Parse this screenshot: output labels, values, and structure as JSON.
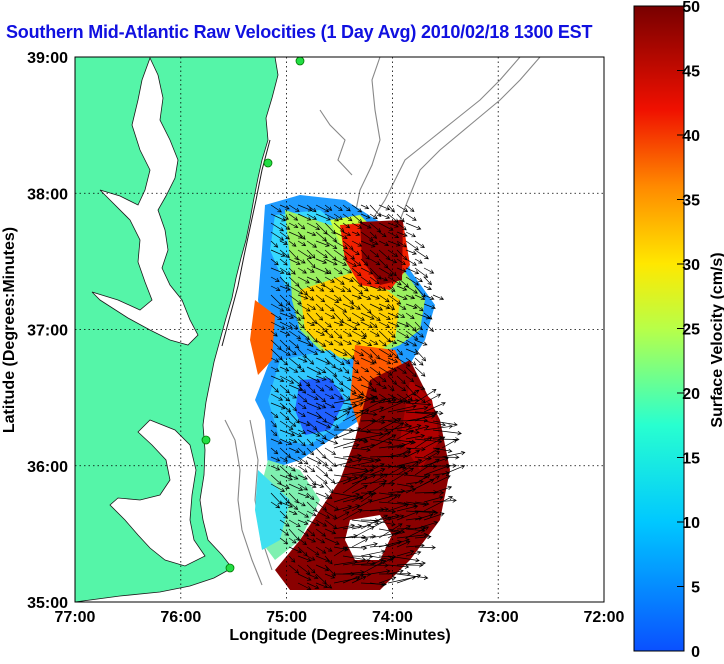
{
  "title": "Southern Mid-Atlantic Raw Velocities (1 Day Avg) 2010/02/18 1300 EST",
  "map": {
    "xlabel": "Longitude (Degrees:Minutes)",
    "ylabel": "Latitude (Degrees:Minutes)",
    "x_ticks": [
      "77:00",
      "76:00",
      "75:00",
      "74:00",
      "73:00",
      "72:00"
    ],
    "y_ticks": [
      "39:00",
      "38:00",
      "37:00",
      "36:00",
      "35:00"
    ],
    "lon_range": [
      -77,
      -72
    ],
    "lat_range": [
      35,
      39
    ],
    "land_color": "#55f5a8",
    "grid": "dotted"
  },
  "colorbar": {
    "label": "Surface Velocity (cm/s)",
    "ticks": [
      "0",
      "5",
      "10",
      "15",
      "20",
      "25",
      "30",
      "35",
      "40",
      "45",
      "50"
    ],
    "min": 0,
    "max": 50,
    "colormap": "jet"
  }
}
